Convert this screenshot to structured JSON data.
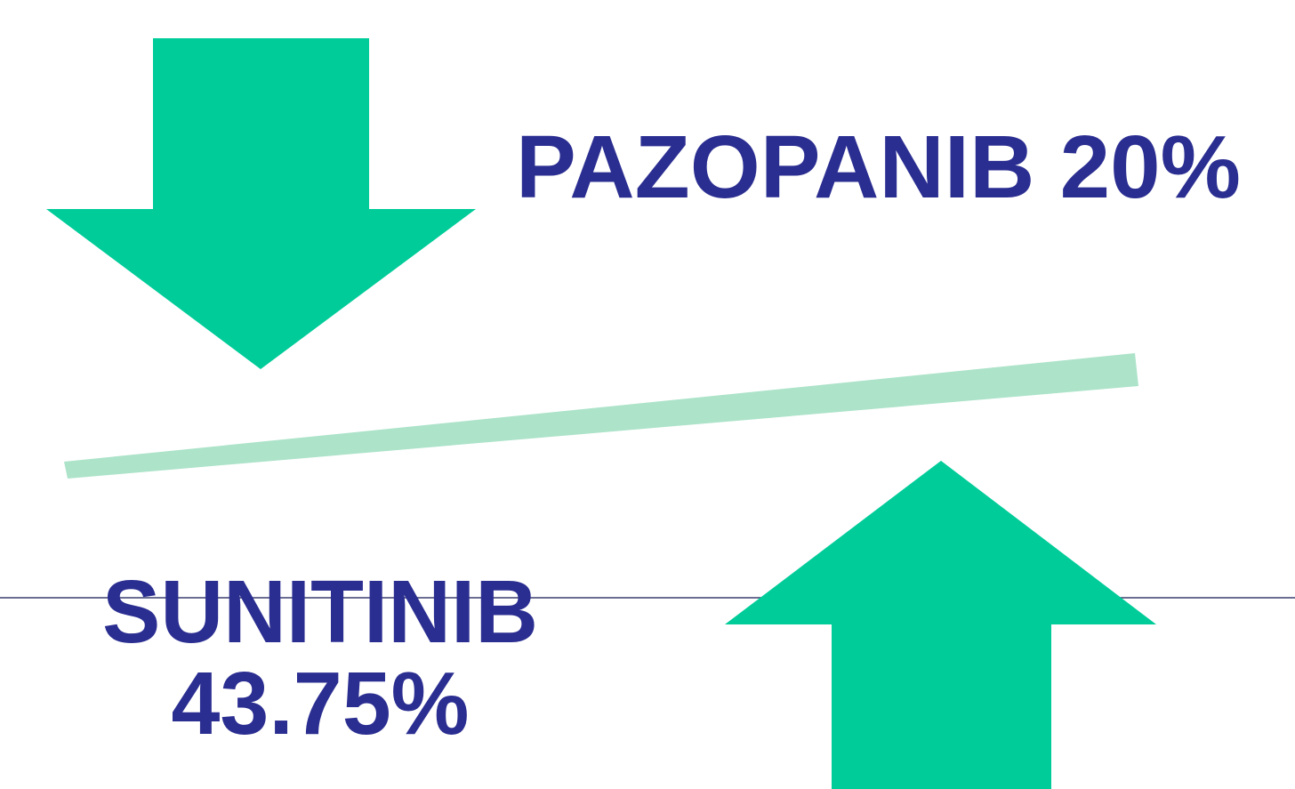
{
  "labels": {
    "top": "PAZOPANIB 20%",
    "bottom_name": "SUNITINIB",
    "bottom_value": "43.75%"
  }
}
